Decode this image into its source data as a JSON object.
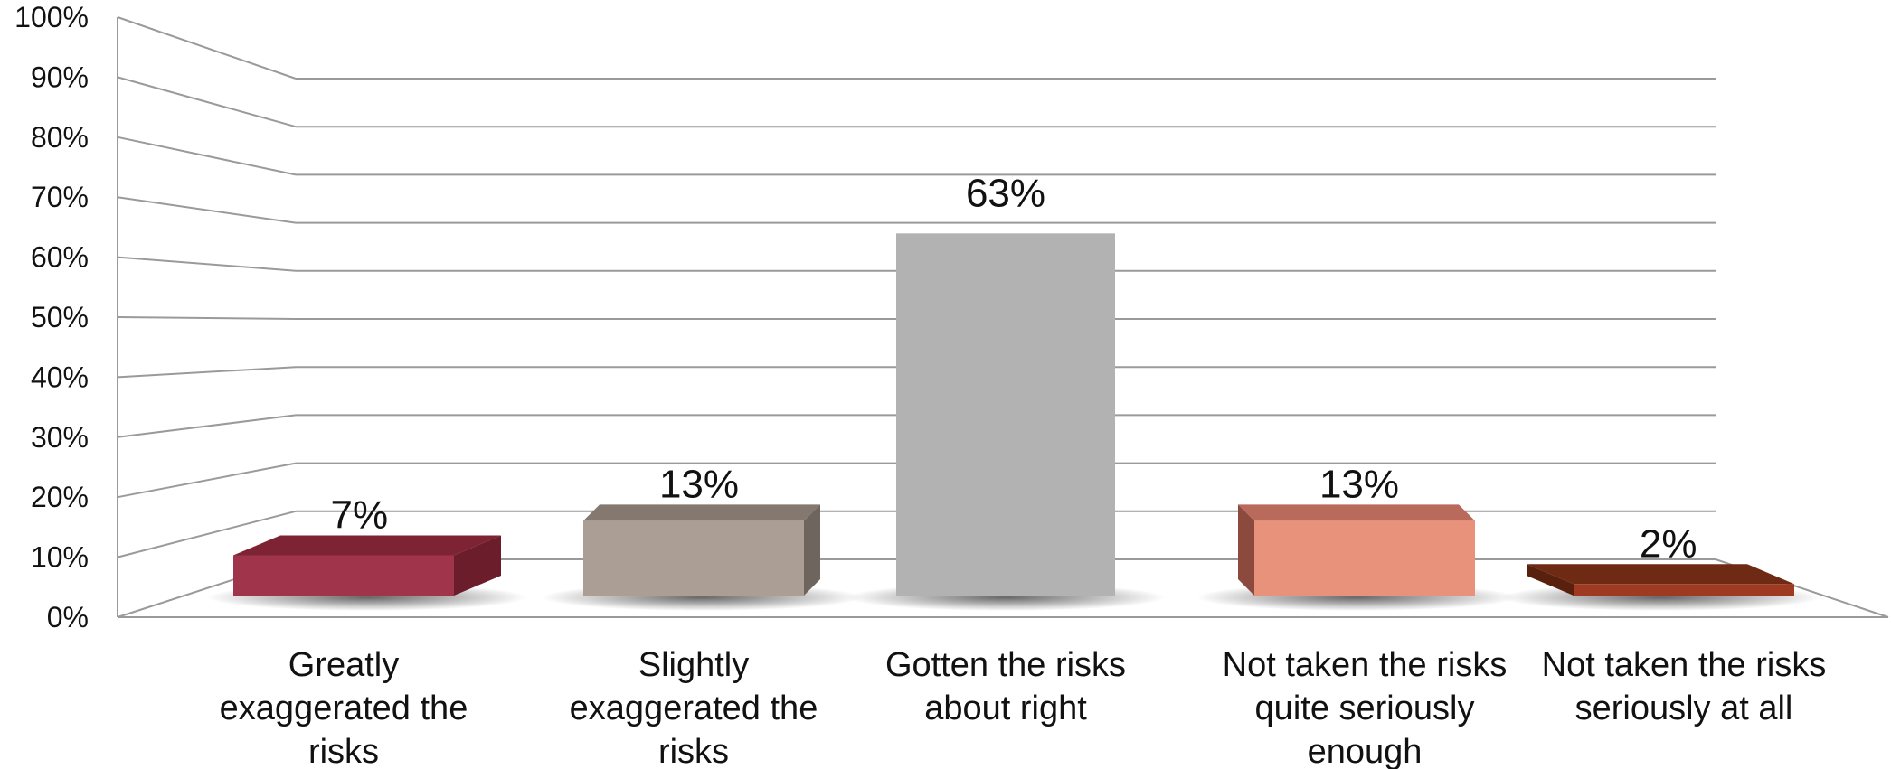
{
  "chart_data": {
    "type": "bar",
    "categories": [
      [
        "Greatly",
        "exaggerated the",
        "risks"
      ],
      [
        "Slightly",
        "exaggerated the",
        "risks"
      ],
      [
        "Gotten the risks",
        "about right"
      ],
      [
        "Not taken the risks",
        "quite seriously",
        "enough"
      ],
      [
        "Not taken the risks",
        "seriously at all"
      ]
    ],
    "values": [
      7,
      13,
      63,
      13,
      2
    ],
    "value_labels": [
      "7%",
      "13%",
      "63%",
      "13%",
      "2%"
    ],
    "yticks": [
      "0%",
      "10%",
      "20%",
      "30%",
      "40%",
      "50%",
      "60%",
      "70%",
      "80%",
      "90%",
      "100%"
    ],
    "ylim": [
      0,
      100
    ],
    "title": "",
    "xlabel": "",
    "ylabel": "",
    "grid": true,
    "style": "3d-bar",
    "colors": {
      "bars": [
        "#a0344a",
        "#ab9f95",
        "#b2b2b2",
        "#e8917b",
        "#9e3a22"
      ],
      "bar_tops": [
        "#7e2334",
        "#84786f",
        "#9a9a9a",
        "#b96a5a",
        "#6f2a14"
      ],
      "bar_sides": [
        "#6b1d2c",
        "#6e655e",
        "#888888",
        "#8b4a3d",
        "#5a200e"
      ],
      "grid": "#9a9a9a",
      "text": "#111111"
    }
  }
}
